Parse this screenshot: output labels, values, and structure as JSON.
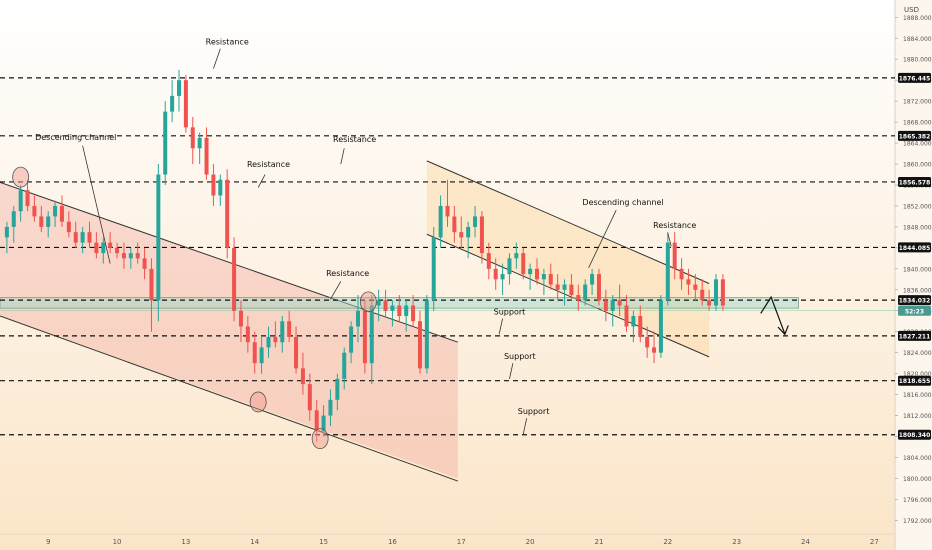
{
  "chart_data": {
    "type": "candlestick",
    "currency": "USD",
    "y_ticks": [
      1792,
      1796,
      1800,
      1804,
      1808,
      1812,
      1816,
      1820,
      1824,
      1828,
      1832,
      1836,
      1840,
      1844,
      1848,
      1852,
      1856,
      1860,
      1864,
      1868,
      1872,
      1876,
      1880,
      1884,
      1888
    ],
    "y_tick_labels": [
      "1792.000",
      "1796.000",
      "1800.000",
      "1804.000",
      "1808.000",
      "1812.000",
      "1816.000",
      "1820.000",
      "1824.000",
      "1828.000",
      "1832.000",
      "1836.000",
      "1840.000",
      "1844.000",
      "1848.000",
      "1852.000",
      "1856.000",
      "1860.000",
      "1864.000",
      "1868.000",
      "1872.000",
      "1876.000",
      "1880.000",
      "1884.000",
      "1888.000"
    ],
    "ylim": [
      1789.4,
      1891.3
    ],
    "x_ticks": [
      {
        "label": "9",
        "t": 1.1
      },
      {
        "label": "10",
        "t": 3.1
      },
      {
        "label": "13",
        "t": 5.1
      },
      {
        "label": "14",
        "t": 7.1
      },
      {
        "label": "15",
        "t": 9.1
      },
      {
        "label": "16",
        "t": 11.1
      },
      {
        "label": "17",
        "t": 13.1
      },
      {
        "label": "20",
        "t": 15.1
      },
      {
        "label": "21",
        "t": 17.1
      },
      {
        "label": "22",
        "t": 19.1
      },
      {
        "label": "23",
        "t": 21.1
      },
      {
        "label": "24",
        "t": 23.1
      },
      {
        "label": "27",
        "t": 25.1
      }
    ],
    "xlim": [
      -0.3,
      25.7
    ],
    "levels": [
      {
        "price": 1876.445,
        "label": "1876.445"
      },
      {
        "price": 1865.382,
        "label": "1865.382"
      },
      {
        "price": 1856.578,
        "label": "1856.578"
      },
      {
        "price": 1844.085,
        "label": "1844.085"
      },
      {
        "price": 1834.032,
        "label": "1834.032"
      },
      {
        "price": 1827.211,
        "label": "1827.211"
      },
      {
        "price": 1818.655,
        "label": "1818.655"
      },
      {
        "price": 1808.34,
        "label": "1808.340"
      }
    ],
    "current_price_label": "52:23",
    "current_price": 1832.0,
    "support_zone": [
      1832.5,
      1834.5
    ],
    "annotations": [
      {
        "text": "Resistance",
        "t": 6.3,
        "y": 1882.8
      },
      {
        "text": "Descending channel",
        "t": 1.9,
        "y": 1864.6
      },
      {
        "text": "Resistance",
        "t": 10.0,
        "y": 1864.2
      },
      {
        "text": "Resistance",
        "t": 7.5,
        "y": 1859.4
      },
      {
        "text": "Resistance",
        "t": 9.8,
        "y": 1838.6
      },
      {
        "text": "Descending channel",
        "t": 17.8,
        "y": 1852.2
      },
      {
        "text": "Resistance",
        "t": 19.3,
        "y": 1847.8
      },
      {
        "text": "Support",
        "t": 14.5,
        "y": 1831.3
      },
      {
        "text": "Support",
        "t": 14.8,
        "y": 1822.8
      },
      {
        "text": "Support",
        "t": 15.2,
        "y": 1812.3
      }
    ],
    "candles": [
      {
        "t": -0.1,
        "o": 1846,
        "h": 1849,
        "l": 1843,
        "c": 1848
      },
      {
        "t": 0.1,
        "o": 1848,
        "h": 1852,
        "l": 1845,
        "c": 1851
      },
      {
        "t": 0.3,
        "o": 1851,
        "h": 1856,
        "l": 1849,
        "c": 1855
      },
      {
        "t": 0.5,
        "o": 1855,
        "h": 1857,
        "l": 1851,
        "c": 1852
      },
      {
        "t": 0.7,
        "o": 1852,
        "h": 1854,
        "l": 1849,
        "c": 1850
      },
      {
        "t": 0.9,
        "o": 1850,
        "h": 1852,
        "l": 1847,
        "c": 1848
      },
      {
        "t": 1.1,
        "o": 1848,
        "h": 1851,
        "l": 1846,
        "c": 1850
      },
      {
        "t": 1.3,
        "o": 1850,
        "h": 1853,
        "l": 1848,
        "c": 1852
      },
      {
        "t": 1.5,
        "o": 1852,
        "h": 1854,
        "l": 1848,
        "c": 1849
      },
      {
        "t": 1.7,
        "o": 1849,
        "h": 1851,
        "l": 1846,
        "c": 1847
      },
      {
        "t": 1.9,
        "o": 1847,
        "h": 1849,
        "l": 1844,
        "c": 1845
      },
      {
        "t": 2.1,
        "o": 1845,
        "h": 1848,
        "l": 1843,
        "c": 1847
      },
      {
        "t": 2.3,
        "o": 1847,
        "h": 1849,
        "l": 1844,
        "c": 1845
      },
      {
        "t": 2.5,
        "o": 1845,
        "h": 1847,
        "l": 1842,
        "c": 1843
      },
      {
        "t": 2.7,
        "o": 1843,
        "h": 1846,
        "l": 1841,
        "c": 1845
      },
      {
        "t": 2.9,
        "o": 1845,
        "h": 1847,
        "l": 1843,
        "c": 1844
      },
      {
        "t": 3.1,
        "o": 1844,
        "h": 1845,
        "l": 1842,
        "c": 1843
      },
      {
        "t": 3.3,
        "o": 1843,
        "h": 1845,
        "l": 1840,
        "c": 1842
      },
      {
        "t": 3.5,
        "o": 1842,
        "h": 1844,
        "l": 1840,
        "c": 1843
      },
      {
        "t": 3.7,
        "o": 1843,
        "h": 1845,
        "l": 1841,
        "c": 1842
      },
      {
        "t": 3.9,
        "o": 1842,
        "h": 1844,
        "l": 1838,
        "c": 1840
      },
      {
        "t": 4.1,
        "o": 1840,
        "h": 1842,
        "l": 1828,
        "c": 1834
      },
      {
        "t": 4.3,
        "o": 1834,
        "h": 1860,
        "l": 1830,
        "c": 1858
      },
      {
        "t": 4.5,
        "o": 1858,
        "h": 1872,
        "l": 1856,
        "c": 1870
      },
      {
        "t": 4.7,
        "o": 1870,
        "h": 1876,
        "l": 1868,
        "c": 1873
      },
      {
        "t": 4.9,
        "o": 1873,
        "h": 1878,
        "l": 1870,
        "c": 1876
      },
      {
        "t": 5.1,
        "o": 1876,
        "h": 1877,
        "l": 1866,
        "c": 1867
      },
      {
        "t": 5.3,
        "o": 1867,
        "h": 1869,
        "l": 1860,
        "c": 1863
      },
      {
        "t": 5.5,
        "o": 1863,
        "h": 1866,
        "l": 1860,
        "c": 1865
      },
      {
        "t": 5.7,
        "o": 1865,
        "h": 1867,
        "l": 1857,
        "c": 1858
      },
      {
        "t": 5.9,
        "o": 1858,
        "h": 1860,
        "l": 1852,
        "c": 1854
      },
      {
        "t": 6.1,
        "o": 1854,
        "h": 1858,
        "l": 1852,
        "c": 1857
      },
      {
        "t": 6.3,
        "o": 1857,
        "h": 1859,
        "l": 1842,
        "c": 1844
      },
      {
        "t": 6.5,
        "o": 1844,
        "h": 1846,
        "l": 1830,
        "c": 1832
      },
      {
        "t": 6.7,
        "o": 1832,
        "h": 1834,
        "l": 1826,
        "c": 1829
      },
      {
        "t": 6.9,
        "o": 1829,
        "h": 1831,
        "l": 1824,
        "c": 1826
      },
      {
        "t": 7.1,
        "o": 1826,
        "h": 1828,
        "l": 1820,
        "c": 1822
      },
      {
        "t": 7.3,
        "o": 1822,
        "h": 1827,
        "l": 1820,
        "c": 1825
      },
      {
        "t": 7.5,
        "o": 1825,
        "h": 1829,
        "l": 1823,
        "c": 1827
      },
      {
        "t": 7.7,
        "o": 1827,
        "h": 1830,
        "l": 1825,
        "c": 1826
      },
      {
        "t": 7.9,
        "o": 1826,
        "h": 1831,
        "l": 1824,
        "c": 1830
      },
      {
        "t": 8.1,
        "o": 1830,
        "h": 1832,
        "l": 1826,
        "c": 1827
      },
      {
        "t": 8.3,
        "o": 1827,
        "h": 1829,
        "l": 1820,
        "c": 1821
      },
      {
        "t": 8.5,
        "o": 1821,
        "h": 1824,
        "l": 1816,
        "c": 1818
      },
      {
        "t": 8.7,
        "o": 1818,
        "h": 1820,
        "l": 1811,
        "c": 1813
      },
      {
        "t": 8.9,
        "o": 1813,
        "h": 1815,
        "l": 1807,
        "c": 1809
      },
      {
        "t": 9.1,
        "o": 1809,
        "h": 1814,
        "l": 1808,
        "c": 1812
      },
      {
        "t": 9.3,
        "o": 1812,
        "h": 1817,
        "l": 1810,
        "c": 1815
      },
      {
        "t": 9.5,
        "o": 1815,
        "h": 1820,
        "l": 1813,
        "c": 1819
      },
      {
        "t": 9.7,
        "o": 1819,
        "h": 1825,
        "l": 1817,
        "c": 1824
      },
      {
        "t": 9.9,
        "o": 1824,
        "h": 1830,
        "l": 1822,
        "c": 1829
      },
      {
        "t": 10.1,
        "o": 1829,
        "h": 1835,
        "l": 1826,
        "c": 1832
      },
      {
        "t": 10.3,
        "o": 1832,
        "h": 1834,
        "l": 1820,
        "c": 1822
      },
      {
        "t": 10.5,
        "o": 1822,
        "h": 1835,
        "l": 1818,
        "c": 1833
      },
      {
        "t": 10.7,
        "o": 1833,
        "h": 1836,
        "l": 1830,
        "c": 1834
      },
      {
        "t": 10.9,
        "o": 1834,
        "h": 1836,
        "l": 1831,
        "c": 1832
      },
      {
        "t": 11.1,
        "o": 1832,
        "h": 1834,
        "l": 1829,
        "c": 1833
      },
      {
        "t": 11.3,
        "o": 1833,
        "h": 1835,
        "l": 1830,
        "c": 1831
      },
      {
        "t": 11.5,
        "o": 1831,
        "h": 1834,
        "l": 1828,
        "c": 1833
      },
      {
        "t": 11.7,
        "o": 1833,
        "h": 1835,
        "l": 1829,
        "c": 1830
      },
      {
        "t": 11.9,
        "o": 1830,
        "h": 1832,
        "l": 1820,
        "c": 1821
      },
      {
        "t": 12.1,
        "o": 1821,
        "h": 1835,
        "l": 1820,
        "c": 1834
      },
      {
        "t": 12.3,
        "o": 1834,
        "h": 1848,
        "l": 1832,
        "c": 1846
      },
      {
        "t": 12.5,
        "o": 1846,
        "h": 1854,
        "l": 1844,
        "c": 1852
      },
      {
        "t": 12.7,
        "o": 1852,
        "h": 1857,
        "l": 1848,
        "c": 1850
      },
      {
        "t": 12.9,
        "o": 1850,
        "h": 1852,
        "l": 1845,
        "c": 1847
      },
      {
        "t": 13.1,
        "o": 1847,
        "h": 1850,
        "l": 1844,
        "c": 1846
      },
      {
        "t": 13.3,
        "o": 1846,
        "h": 1849,
        "l": 1842,
        "c": 1848
      },
      {
        "t": 13.5,
        "o": 1848,
        "h": 1852,
        "l": 1846,
        "c": 1850
      },
      {
        "t": 13.7,
        "o": 1850,
        "h": 1851,
        "l": 1841,
        "c": 1843
      },
      {
        "t": 13.9,
        "o": 1843,
        "h": 1845,
        "l": 1838,
        "c": 1840
      },
      {
        "t": 14.1,
        "o": 1840,
        "h": 1842,
        "l": 1836,
        "c": 1838
      },
      {
        "t": 14.3,
        "o": 1838,
        "h": 1841,
        "l": 1835,
        "c": 1839
      },
      {
        "t": 14.5,
        "o": 1839,
        "h": 1843,
        "l": 1837,
        "c": 1842
      },
      {
        "t": 14.7,
        "o": 1842,
        "h": 1845,
        "l": 1840,
        "c": 1843
      },
      {
        "t": 14.9,
        "o": 1843,
        "h": 1844,
        "l": 1838,
        "c": 1839
      },
      {
        "t": 15.1,
        "o": 1839,
        "h": 1841,
        "l": 1836,
        "c": 1840
      },
      {
        "t": 15.3,
        "o": 1840,
        "h": 1842,
        "l": 1837,
        "c": 1838
      },
      {
        "t": 15.5,
        "o": 1838,
        "h": 1840,
        "l": 1835,
        "c": 1839
      },
      {
        "t": 15.7,
        "o": 1839,
        "h": 1841,
        "l": 1836,
        "c": 1837
      },
      {
        "t": 15.9,
        "o": 1837,
        "h": 1839,
        "l": 1834,
        "c": 1836
      },
      {
        "t": 16.1,
        "o": 1836,
        "h": 1838,
        "l": 1833,
        "c": 1837
      },
      {
        "t": 16.3,
        "o": 1837,
        "h": 1839,
        "l": 1834,
        "c": 1835
      },
      {
        "t": 16.5,
        "o": 1835,
        "h": 1837,
        "l": 1832,
        "c": 1834
      },
      {
        "t": 16.7,
        "o": 1834,
        "h": 1838,
        "l": 1833,
        "c": 1837
      },
      {
        "t": 16.9,
        "o": 1837,
        "h": 1840,
        "l": 1835,
        "c": 1839
      },
      {
        "t": 17.1,
        "o": 1839,
        "h": 1840,
        "l": 1833,
        "c": 1834
      },
      {
        "t": 17.3,
        "o": 1834,
        "h": 1836,
        "l": 1830,
        "c": 1832
      },
      {
        "t": 17.5,
        "o": 1832,
        "h": 1835,
        "l": 1829,
        "c": 1834
      },
      {
        "t": 17.7,
        "o": 1834,
        "h": 1837,
        "l": 1831,
        "c": 1833
      },
      {
        "t": 17.9,
        "o": 1833,
        "h": 1835,
        "l": 1828,
        "c": 1829
      },
      {
        "t": 18.1,
        "o": 1829,
        "h": 1832,
        "l": 1826,
        "c": 1831
      },
      {
        "t": 18.3,
        "o": 1831,
        "h": 1833,
        "l": 1826,
        "c": 1827
      },
      {
        "t": 18.5,
        "o": 1827,
        "h": 1829,
        "l": 1823,
        "c": 1825
      },
      {
        "t": 18.7,
        "o": 1825,
        "h": 1828,
        "l": 1822,
        "c": 1824
      },
      {
        "t": 18.9,
        "o": 1824,
        "h": 1835,
        "l": 1823,
        "c": 1834
      },
      {
        "t": 19.1,
        "o": 1834,
        "h": 1847,
        "l": 1833,
        "c": 1845
      },
      {
        "t": 19.3,
        "o": 1845,
        "h": 1847,
        "l": 1838,
        "c": 1840
      },
      {
        "t": 19.5,
        "o": 1840,
        "h": 1842,
        "l": 1836,
        "c": 1838
      },
      {
        "t": 19.7,
        "o": 1838,
        "h": 1840,
        "l": 1835,
        "c": 1837
      },
      {
        "t": 19.9,
        "o": 1837,
        "h": 1839,
        "l": 1834,
        "c": 1836
      },
      {
        "t": 20.1,
        "o": 1836,
        "h": 1838,
        "l": 1833,
        "c": 1834
      },
      {
        "t": 20.3,
        "o": 1834,
        "h": 1836,
        "l": 1832,
        "c": 1833
      },
      {
        "t": 20.5,
        "o": 1833,
        "h": 1839,
        "l": 1832,
        "c": 1838
      },
      {
        "t": 20.7,
        "o": 1838,
        "h": 1839,
        "l": 1832,
        "c": 1833
      }
    ]
  }
}
